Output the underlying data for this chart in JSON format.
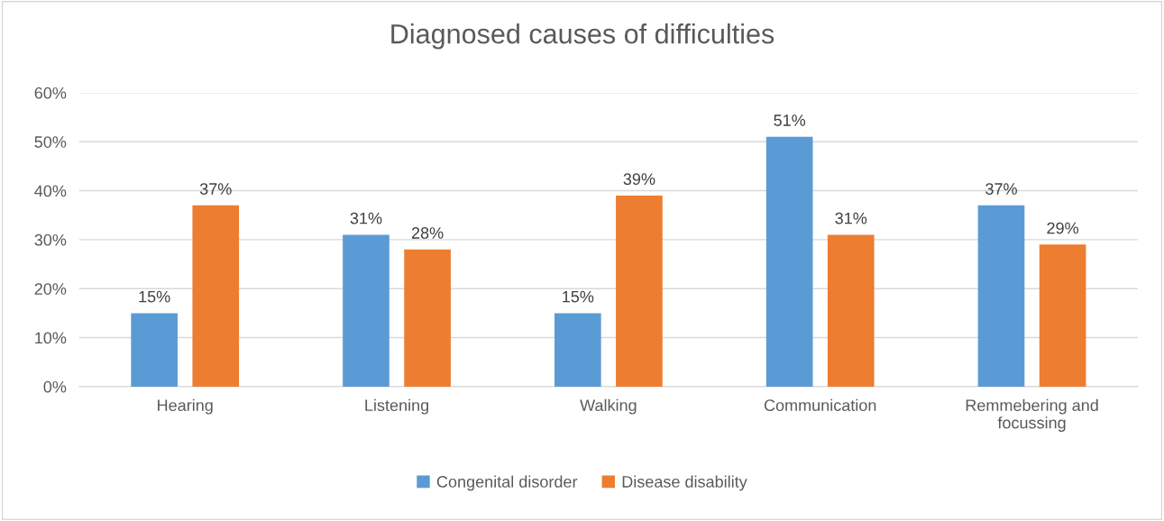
{
  "chart_data": {
    "type": "bar",
    "title": "Diagnosed causes of difficulties",
    "categories": [
      "Hearing",
      "Listening",
      "Walking",
      "Communication",
      "Remmebering and focussing"
    ],
    "series": [
      {
        "name": "Congenital disorder",
        "color": "#5b9bd5",
        "values": [
          15,
          31,
          15,
          51,
          37
        ],
        "value_labels": [
          "15%",
          "31%",
          "15%",
          "51%",
          "37%"
        ]
      },
      {
        "name": "Disease disability",
        "color": "#ed7d31",
        "values": [
          37,
          28,
          39,
          31,
          29
        ],
        "value_labels": [
          "37%",
          "28%",
          "39%",
          "31%",
          "29%"
        ]
      }
    ],
    "ylim": [
      0,
      60
    ],
    "yticks": [
      {
        "value": 0,
        "label": "0%"
      },
      {
        "value": 10,
        "label": "10%"
      },
      {
        "value": 20,
        "label": "20%"
      },
      {
        "value": 30,
        "label": "30%"
      },
      {
        "value": 40,
        "label": "40%"
      },
      {
        "value": 50,
        "label": "50%"
      },
      {
        "value": 60,
        "label": "60%"
      }
    ],
    "grid": "y",
    "legend": "bottom"
  }
}
